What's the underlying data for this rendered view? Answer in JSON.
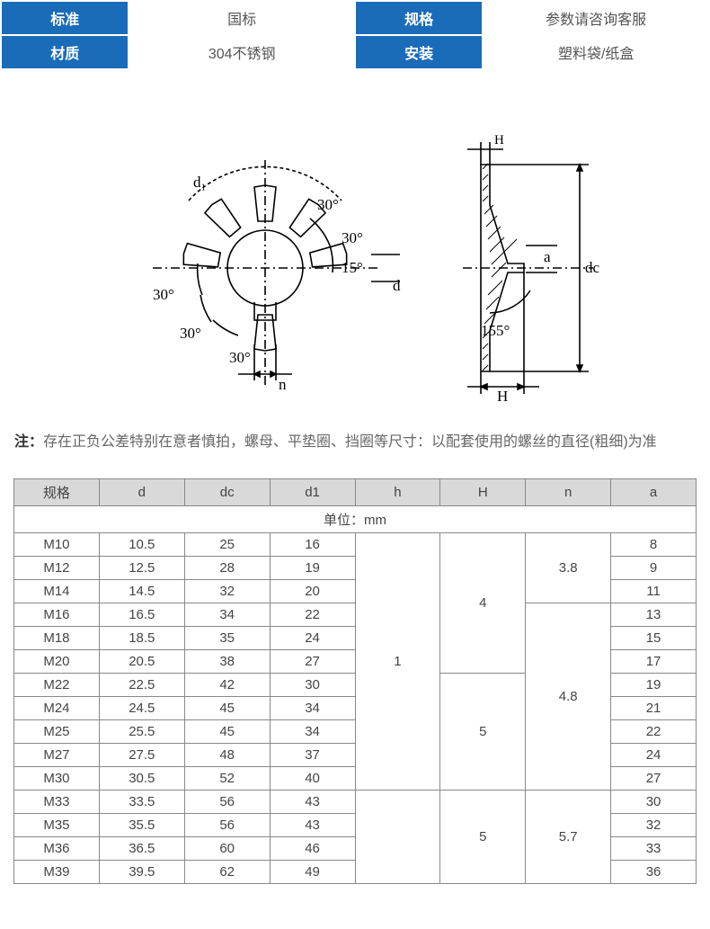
{
  "spec": {
    "rows": [
      {
        "label1": "标准",
        "value1": "国标",
        "label2": "规格",
        "value2": "参数请咨询客服"
      },
      {
        "label1": "材质",
        "value1": "304不锈钢",
        "label2": "安装",
        "value2": "塑料袋/纸盒"
      }
    ],
    "label_bg": "#1a6cb8",
    "label_color": "#ffffff",
    "value_color": "#555555"
  },
  "diagram": {
    "angles": [
      "30°",
      "30°",
      "30°",
      "30°",
      "30°",
      "15°",
      "155°"
    ],
    "labels": [
      "d₁",
      "d",
      "n",
      "dc",
      "a",
      "H"
    ],
    "stroke": "#000000"
  },
  "note": {
    "label": "注：",
    "text": "存在正负公差特别在意者慎拍，螺母、平垫圈、挡圈等尺寸：以配套使用的螺丝的直径(粗细)为准"
  },
  "dataTable": {
    "headers": [
      "规格",
      "d",
      "dc",
      "d1",
      "h",
      "H",
      "n",
      "a"
    ],
    "unit_label": "单位：mm",
    "header_bg": "#d9d9d9",
    "border_color": "#888888",
    "rows": [
      {
        "spec": "M10",
        "d": "10.5",
        "dc": "25",
        "d1": "16",
        "a": "8"
      },
      {
        "spec": "M12",
        "d": "12.5",
        "dc": "28",
        "d1": "19",
        "a": "9"
      },
      {
        "spec": "M14",
        "d": "14.5",
        "dc": "32",
        "d1": "20",
        "a": "11"
      },
      {
        "spec": "M16",
        "d": "16.5",
        "dc": "34",
        "d1": "22",
        "a": "13"
      },
      {
        "spec": "M18",
        "d": "18.5",
        "dc": "35",
        "d1": "24",
        "a": "15"
      },
      {
        "spec": "M20",
        "d": "20.5",
        "dc": "38",
        "d1": "27",
        "a": "17"
      },
      {
        "spec": "M22",
        "d": "22.5",
        "dc": "42",
        "d1": "30",
        "a": "19"
      },
      {
        "spec": "M24",
        "d": "24.5",
        "dc": "45",
        "d1": "34",
        "a": "21"
      },
      {
        "spec": "M25",
        "d": "25.5",
        "dc": "45",
        "d1": "34",
        "a": "22"
      },
      {
        "spec": "M27",
        "d": "27.5",
        "dc": "48",
        "d1": "37",
        "a": "24"
      },
      {
        "spec": "M30",
        "d": "30.5",
        "dc": "52",
        "d1": "40",
        "a": "27"
      },
      {
        "spec": "M33",
        "d": "33.5",
        "dc": "56",
        "d1": "43",
        "a": "30"
      },
      {
        "spec": "M35",
        "d": "35.5",
        "dc": "56",
        "d1": "43",
        "a": "32"
      },
      {
        "spec": "M36",
        "d": "36.5",
        "dc": "60",
        "d1": "46",
        "a": "33"
      },
      {
        "spec": "M39",
        "d": "39.5",
        "dc": "62",
        "d1": "49",
        "a": "36"
      }
    ],
    "h_groups": [
      {
        "value": "1",
        "span": 11
      },
      {
        "value": "",
        "span": 4
      }
    ],
    "H_groups": [
      {
        "value": "4",
        "span": 6
      },
      {
        "value": "5",
        "span": 5
      },
      {
        "value": "5",
        "span": 4
      }
    ],
    "n_groups": [
      {
        "value": "3.8",
        "span": 3
      },
      {
        "value": "4.8",
        "span": 8
      },
      {
        "value": "5.7",
        "span": 4
      }
    ]
  }
}
